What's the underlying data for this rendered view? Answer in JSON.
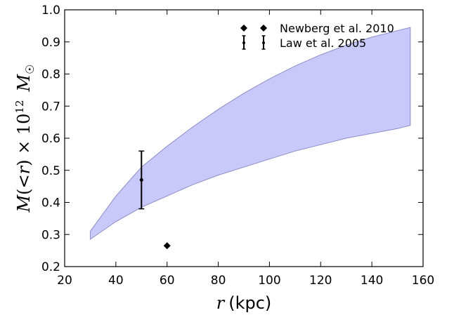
{
  "chart_data": {
    "type": "area",
    "xlabel": "r (kpc)",
    "ylabel": "M(<r) × 10¹² M☉",
    "xlim": [
      20,
      160
    ],
    "ylim": [
      0.2,
      1.0
    ],
    "xticks": [
      20,
      40,
      60,
      80,
      100,
      120,
      140,
      160
    ],
    "yticks": [
      0.2,
      0.3,
      0.4,
      0.5,
      0.6,
      0.7,
      0.8,
      0.9,
      1.0
    ],
    "xtick_labels": [
      "20",
      "40",
      "60",
      "80",
      "100",
      "120",
      "140",
      "160"
    ],
    "ytick_labels": [
      "0.2",
      "0.3",
      "0.4",
      "0.5",
      "0.6",
      "0.7",
      "0.8",
      "0.9",
      "1.0"
    ],
    "grid": false,
    "legend_position": "top-right",
    "band": {
      "color": "#c8c8fa",
      "edge_color": "#8c8cc8",
      "x": [
        30,
        40,
        50,
        60,
        70,
        80,
        90,
        100,
        110,
        120,
        130,
        140,
        150,
        155
      ],
      "lower": [
        0.285,
        0.34,
        0.385,
        0.42,
        0.455,
        0.485,
        0.51,
        0.535,
        0.56,
        0.58,
        0.6,
        0.615,
        0.63,
        0.64
      ],
      "upper": [
        0.31,
        0.42,
        0.51,
        0.575,
        0.635,
        0.69,
        0.74,
        0.785,
        0.825,
        0.86,
        0.89,
        0.915,
        0.935,
        0.945
      ]
    },
    "series": [
      {
        "name": "Newberg et al. 2010",
        "marker": "diamond",
        "points": [
          {
            "x": 60,
            "y": 0.265
          }
        ]
      },
      {
        "name": "Law et al. 2005",
        "marker": "errorbar",
        "points": [
          {
            "x": 50,
            "y": 0.47,
            "yerr_low": 0.09,
            "yerr_high": 0.09
          }
        ]
      }
    ]
  }
}
